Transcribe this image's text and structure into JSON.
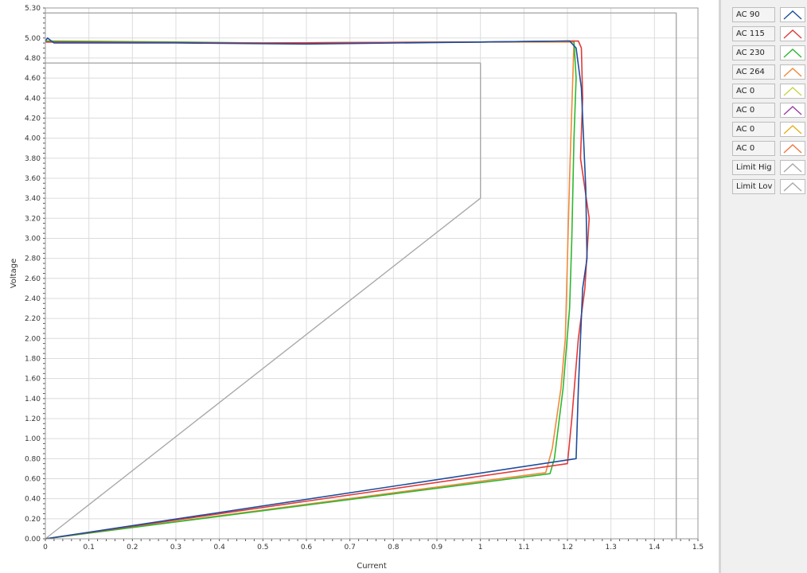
{
  "chart_data": {
    "type": "line",
    "title": "",
    "xlabel": "Current",
    "ylabel": "Voltage",
    "xlim": [
      0,
      1.5
    ],
    "ylim": [
      0,
      5.3
    ],
    "xticks": [
      "0",
      "0.1",
      "0.2",
      "0.3",
      "0.4",
      "0.5",
      "0.6",
      "0.7",
      "0.8",
      "0.9",
      "1",
      "1.1",
      "1.2",
      "1.3",
      "1.4",
      "1.5"
    ],
    "yticks": [
      "0.00",
      "0.20",
      "0.40",
      "0.60",
      "0.80",
      "1.00",
      "1.20",
      "1.40",
      "1.60",
      "1.80",
      "2.00",
      "2.20",
      "2.40",
      "2.60",
      "2.80",
      "3.00",
      "3.20",
      "3.40",
      "3.60",
      "3.80",
      "4.00",
      "4.20",
      "4.40",
      "4.60",
      "4.80",
      "5.00",
      "5.30"
    ],
    "grid": true,
    "legend_position": "right",
    "series": [
      {
        "name": "AC 90",
        "color": "#1f4e9c",
        "x": [
          0,
          1.22,
          1.225,
          1.235,
          1.245,
          1.242,
          1.232,
          1.22,
          1.205,
          1.0,
          0.6,
          0.3,
          0.02,
          0.005,
          0
        ],
        "y": [
          0,
          0.8,
          1.5,
          2.5,
          2.8,
          3.5,
          4.5,
          4.9,
          4.97,
          4.96,
          4.94,
          4.95,
          4.95,
          5.0,
          4.97
        ]
      },
      {
        "name": "AC 115",
        "color": "#e23a3a",
        "x": [
          0,
          1.2,
          1.21,
          1.225,
          1.24,
          1.25,
          1.23,
          1.235,
          1.232,
          1.225,
          1.0,
          0.5,
          0
        ],
        "y": [
          0,
          0.75,
          1.2,
          2.0,
          2.5,
          3.2,
          3.8,
          4.4,
          4.9,
          4.97,
          4.96,
          4.95,
          4.96
        ]
      },
      {
        "name": "AC 230",
        "color": "#2eb82e",
        "x": [
          0,
          1.16,
          1.17,
          1.19,
          1.205,
          1.21,
          1.215,
          1.22,
          1.215,
          1.0,
          0.5,
          0.3,
          0
        ],
        "y": [
          0,
          0.65,
          0.8,
          1.5,
          2.3,
          3.0,
          4.0,
          4.6,
          4.97,
          4.96,
          4.95,
          4.96,
          4.97
        ]
      },
      {
        "name": "AC 264",
        "color": "#f08a3c",
        "x": [
          0,
          1.15,
          1.165,
          1.185,
          1.195,
          1.2,
          1.205,
          1.21,
          1.215,
          1.0,
          0.5,
          0
        ],
        "y": [
          0,
          0.66,
          0.9,
          1.5,
          2.0,
          2.8,
          3.6,
          4.3,
          4.96,
          4.96,
          4.95,
          4.96
        ]
      },
      {
        "name": "AC 0",
        "color": "#c8d44a",
        "x": [],
        "y": []
      },
      {
        "name": "AC 0",
        "color": "#9b3fa6",
        "x": [],
        "y": []
      },
      {
        "name": "AC 0",
        "color": "#e8b020",
        "x": [],
        "y": []
      },
      {
        "name": "AC 0",
        "color": "#f07840",
        "x": [],
        "y": []
      },
      {
        "name": "Limit Hig",
        "color": "#a9a9a9",
        "x": [
          0,
          1.45,
          1.45
        ],
        "y": [
          5.25,
          5.25,
          0
        ]
      },
      {
        "name": "Limit Lov",
        "color": "#a9a9a9",
        "x": [
          0,
          1.0,
          1.0,
          0
        ],
        "y": [
          4.75,
          4.75,
          3.4,
          0
        ]
      }
    ]
  }
}
